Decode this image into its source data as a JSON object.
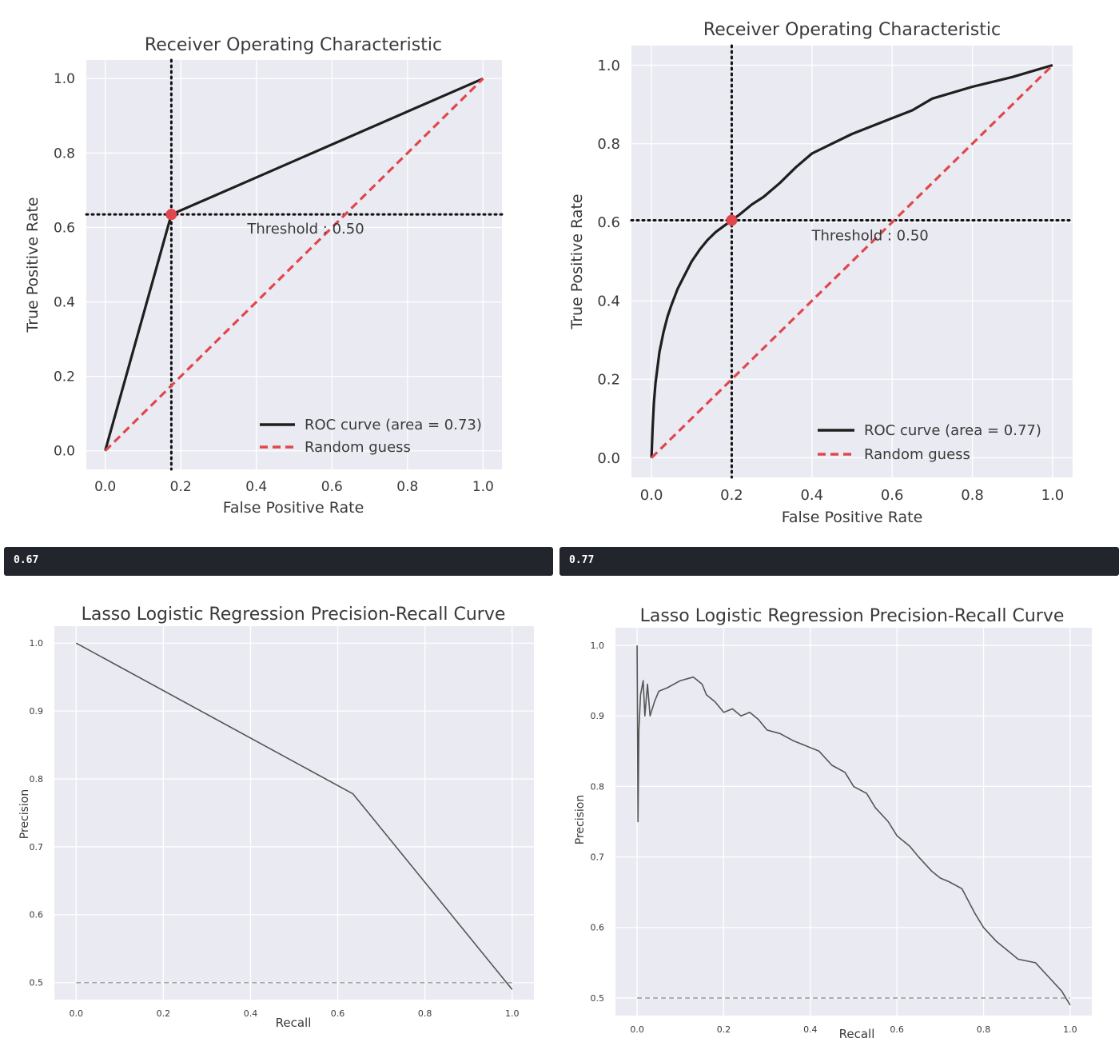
{
  "outputs": [
    {
      "text": "0.67"
    },
    {
      "text": "0.77"
    }
  ],
  "colors": {
    "plot_bg": "#eaeaf2",
    "roc_line": "#1f1f1f",
    "random_line": "#e0474c",
    "threshold_point": "#e0474c",
    "pr_line": "#555555",
    "baseline": "#999999",
    "output_bg": "#22252b"
  },
  "chart_data": [
    {
      "type": "line",
      "title": "Receiver Operating Characteristic",
      "xlabel": "False Positive Rate",
      "ylabel": "True Positive Rate",
      "xlim": [
        -0.05,
        1.05
      ],
      "ylim": [
        -0.05,
        1.05
      ],
      "xticks": [
        0.0,
        0.2,
        0.4,
        0.6,
        0.8,
        1.0
      ],
      "yticks": [
        0.0,
        0.2,
        0.4,
        0.6,
        0.8,
        1.0
      ],
      "xtick_labels": [
        "0.0",
        "0.2",
        "0.4",
        "0.6",
        "0.8",
        "1.0"
      ],
      "ytick_labels": [
        "0.0",
        "0.2",
        "0.4",
        "0.6",
        "0.8",
        "1.0"
      ],
      "grid": true,
      "legend_position": "lower-right",
      "series": [
        {
          "name": "ROC curve (area = 0.73)",
          "style": "solid",
          "x": [
            0.0,
            0.175,
            1.0
          ],
          "y": [
            0.0,
            0.635,
            1.0
          ]
        },
        {
          "name": "Random guess",
          "style": "dashed",
          "x": [
            0.0,
            1.0
          ],
          "y": [
            0.0,
            1.0
          ]
        }
      ],
      "threshold": {
        "x": 0.175,
        "y": 0.635,
        "label": "Threshold : 0.50"
      }
    },
    {
      "type": "line",
      "title": "Receiver Operating Characteristic",
      "xlabel": "False Positive Rate",
      "ylabel": "True Positive Rate",
      "xlim": [
        -0.05,
        1.05
      ],
      "ylim": [
        -0.05,
        1.05
      ],
      "xticks": [
        0.0,
        0.2,
        0.4,
        0.6,
        0.8,
        1.0
      ],
      "yticks": [
        0.0,
        0.2,
        0.4,
        0.6,
        0.8,
        1.0
      ],
      "xtick_labels": [
        "0.0",
        "0.2",
        "0.4",
        "0.6",
        "0.8",
        "1.0"
      ],
      "ytick_labels": [
        "0.0",
        "0.2",
        "0.4",
        "0.6",
        "0.8",
        "1.0"
      ],
      "grid": true,
      "legend_position": "lower-right",
      "series": [
        {
          "name": "ROC curve (area = 0.77)",
          "style": "solid",
          "x": [
            0.0,
            0.003,
            0.006,
            0.01,
            0.015,
            0.02,
            0.03,
            0.04,
            0.05,
            0.065,
            0.08,
            0.1,
            0.12,
            0.14,
            0.16,
            0.18,
            0.2,
            0.22,
            0.25,
            0.28,
            0.32,
            0.36,
            0.4,
            0.45,
            0.5,
            0.55,
            0.6,
            0.65,
            0.7,
            0.8,
            0.9,
            1.0
          ],
          "y": [
            0.0,
            0.08,
            0.14,
            0.19,
            0.23,
            0.27,
            0.32,
            0.36,
            0.39,
            0.43,
            0.46,
            0.5,
            0.53,
            0.555,
            0.575,
            0.59,
            0.605,
            0.62,
            0.645,
            0.665,
            0.7,
            0.74,
            0.775,
            0.8,
            0.825,
            0.845,
            0.865,
            0.885,
            0.915,
            0.945,
            0.97,
            1.0
          ]
        },
        {
          "name": "Random guess",
          "style": "dashed",
          "x": [
            0.0,
            1.0
          ],
          "y": [
            0.0,
            1.0
          ]
        }
      ],
      "threshold": {
        "x": 0.2,
        "y": 0.605,
        "label": "Threshold : 0.50"
      }
    },
    {
      "type": "line",
      "title": "Lasso Logistic Regression Precision-Recall Curve",
      "xlabel": "Recall",
      "ylabel": "Precision",
      "xlim": [
        -0.05,
        1.05
      ],
      "ylim": [
        0.475,
        1.025
      ],
      "xticks": [
        0.0,
        0.2,
        0.4,
        0.6,
        0.8,
        1.0
      ],
      "yticks": [
        0.5,
        0.6,
        0.7,
        0.8,
        0.9,
        1.0
      ],
      "xtick_labels": [
        "0.0",
        "0.2",
        "0.4",
        "0.6",
        "0.8",
        "1.0"
      ],
      "ytick_labels": [
        "0.5",
        "0.6",
        "0.7",
        "0.8",
        "0.9",
        "1.0"
      ],
      "grid": true,
      "series": [
        {
          "style": "solid",
          "x": [
            0.0,
            0.635,
            1.0
          ],
          "y": [
            1.0,
            0.778,
            0.49
          ]
        },
        {
          "style": "dashed",
          "x": [
            0.0,
            1.0
          ],
          "y": [
            0.5,
            0.5
          ]
        }
      ]
    },
    {
      "type": "line",
      "title": "Lasso Logistic Regression Precision-Recall Curve",
      "xlabel": "Recall",
      "ylabel": "Precision",
      "xlim": [
        -0.05,
        1.05
      ],
      "ylim": [
        0.475,
        1.025
      ],
      "xticks": [
        0.0,
        0.2,
        0.4,
        0.6,
        0.8,
        1.0
      ],
      "yticks": [
        0.5,
        0.6,
        0.7,
        0.8,
        0.9,
        1.0
      ],
      "xtick_labels": [
        "0.0",
        "0.2",
        "0.4",
        "0.6",
        "0.8",
        "1.0"
      ],
      "ytick_labels": [
        "0.5",
        "0.6",
        "0.7",
        "0.8",
        "0.9",
        "1.0"
      ],
      "grid": true,
      "series": [
        {
          "style": "solid",
          "x": [
            0.0,
            0.002,
            0.004,
            0.008,
            0.014,
            0.018,
            0.024,
            0.03,
            0.04,
            0.05,
            0.07,
            0.1,
            0.13,
            0.15,
            0.16,
            0.18,
            0.2,
            0.22,
            0.24,
            0.26,
            0.28,
            0.3,
            0.33,
            0.36,
            0.38,
            0.42,
            0.45,
            0.48,
            0.5,
            0.53,
            0.55,
            0.58,
            0.6,
            0.63,
            0.65,
            0.68,
            0.7,
            0.72,
            0.75,
            0.78,
            0.8,
            0.83,
            0.86,
            0.88,
            0.92,
            0.95,
            0.98,
            1.0
          ],
          "y": [
            1.0,
            0.75,
            0.88,
            0.93,
            0.95,
            0.9,
            0.945,
            0.9,
            0.92,
            0.935,
            0.94,
            0.95,
            0.955,
            0.945,
            0.93,
            0.92,
            0.905,
            0.91,
            0.9,
            0.905,
            0.895,
            0.88,
            0.875,
            0.865,
            0.86,
            0.85,
            0.83,
            0.82,
            0.8,
            0.79,
            0.77,
            0.75,
            0.73,
            0.715,
            0.7,
            0.68,
            0.67,
            0.665,
            0.655,
            0.62,
            0.6,
            0.58,
            0.565,
            0.555,
            0.55,
            0.53,
            0.51,
            0.49
          ]
        },
        {
          "style": "dashed",
          "x": [
            0.0,
            1.0
          ],
          "y": [
            0.5,
            0.5
          ]
        }
      ]
    }
  ]
}
